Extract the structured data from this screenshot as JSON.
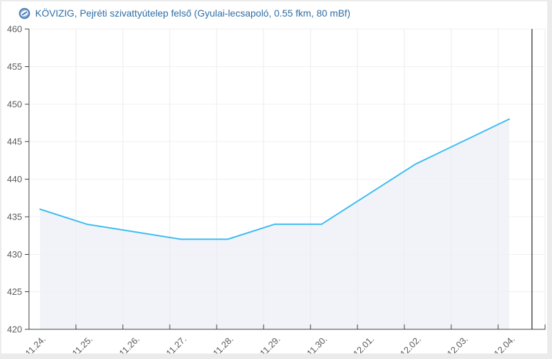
{
  "header": {
    "title": "KÖVIZIG, Pejréti szivattyútelep felső (Gyulai-lecsapoló, 0.55 fkm, 80 mBf)",
    "icon": "gauge-logo-icon"
  },
  "chart_data": {
    "type": "area",
    "title": "KÖVIZIG, Pejréti szivattyútelep felső (Gyulai-lecsapoló, 0.55 fkm, 80 mBf)",
    "categories": [
      "11.24.",
      "11.25.",
      "11.26.",
      "11.27.",
      "11.28.",
      "11.29.",
      "11.30.",
      "12.01.",
      "12.02.",
      "12.03.",
      "12.04."
    ],
    "values": [
      436,
      434,
      433,
      432,
      432,
      434,
      434,
      438,
      442,
      445,
      448
    ],
    "xlabel": "",
    "ylabel": "",
    "ylim": [
      420,
      460
    ],
    "yticks": [
      420,
      425,
      430,
      435,
      440,
      445,
      450,
      455,
      460
    ],
    "grid": true,
    "legend": "none",
    "point_offset_fraction": 0.235,
    "plotline_x": 10.72,
    "colors": {
      "line": "#3bbdf0",
      "fill": "#f1f3f8",
      "axis": "#3c3c3c",
      "label": "#58595b",
      "grid_v": "#ebebee",
      "grid_h": "#f0f0f3",
      "plotline": "#4a4a4a",
      "title": "#2e6da4"
    }
  }
}
